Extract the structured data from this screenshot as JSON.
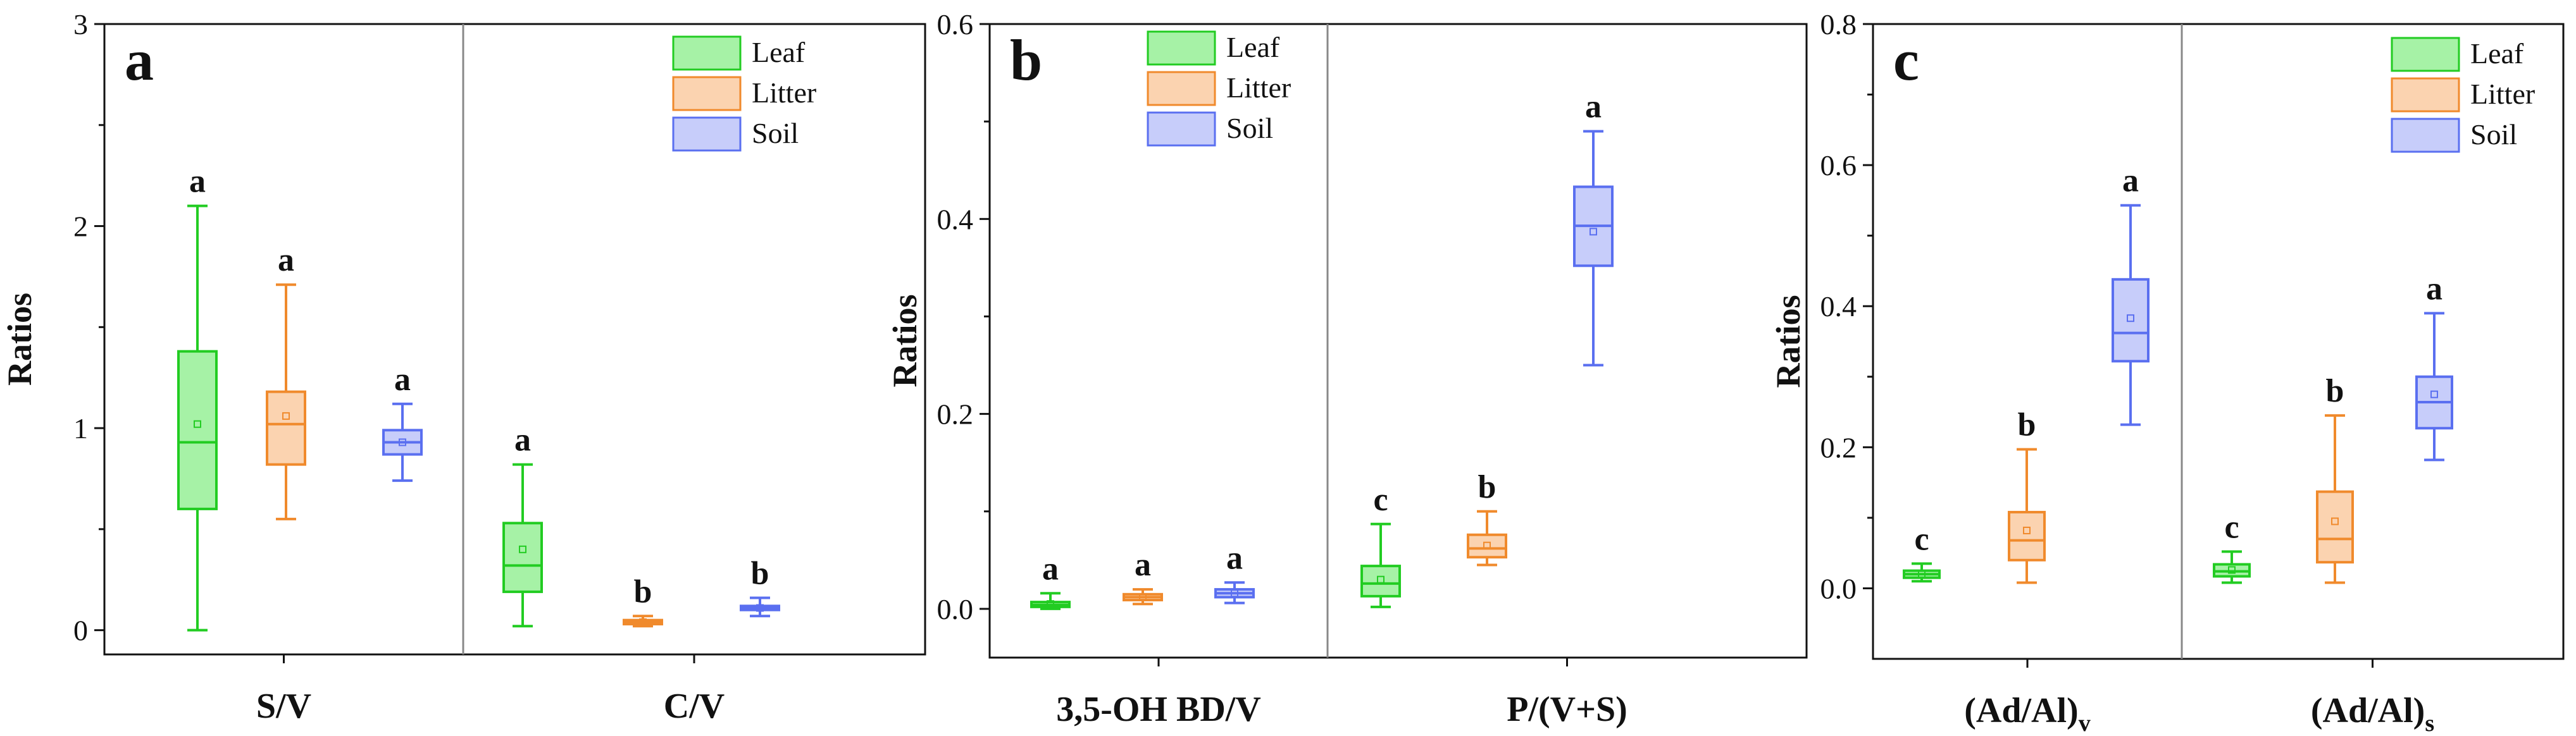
{
  "colors": {
    "Leaf": "#22cc22",
    "Litter": "#f08a2c",
    "Soil": "#5a6ff0"
  },
  "fills": {
    "Leaf": "#a6f2a6",
    "Litter": "#fbd3b0",
    "Soil": "#c7cdfa"
  },
  "chart_data": [
    {
      "type": "box",
      "panel_label": "a",
      "ylabel": "Ratios",
      "ylim": [
        -0.12,
        3
      ],
      "yticks": [
        0,
        1,
        2,
        3
      ],
      "ytick_labels": [
        "0",
        "1",
        "2",
        "3"
      ],
      "legend": {
        "placement": "top-right",
        "entries": [
          "Leaf",
          "Litter",
          "Soil"
        ]
      },
      "categories": [
        "S/V",
        "C/V"
      ],
      "series": [
        {
          "name": "Leaf",
          "boxes": [
            {
              "min": 0.0,
              "q1": 0.6,
              "median": 0.93,
              "q3": 1.38,
              "max": 2.1,
              "mean": 1.02,
              "sig": "a"
            },
            {
              "min": 0.02,
              "q1": 0.19,
              "median": 0.32,
              "q3": 0.53,
              "max": 0.82,
              "mean": 0.4,
              "sig": "a"
            }
          ]
        },
        {
          "name": "Litter",
          "boxes": [
            {
              "min": 0.55,
              "q1": 0.82,
              "median": 1.02,
              "q3": 1.18,
              "max": 1.71,
              "mean": 1.06,
              "sig": "a"
            },
            {
              "min": 0.02,
              "q1": 0.03,
              "median": 0.04,
              "q3": 0.05,
              "max": 0.07,
              "mean": 0.04,
              "sig": "b"
            }
          ]
        },
        {
          "name": "Soil",
          "boxes": [
            {
              "min": 0.74,
              "q1": 0.87,
              "median": 0.93,
              "q3": 0.99,
              "max": 1.12,
              "mean": 0.93,
              "sig": "a"
            },
            {
              "min": 0.07,
              "q1": 0.1,
              "median": 0.11,
              "q3": 0.12,
              "max": 0.16,
              "mean": 0.11,
              "sig": "b"
            }
          ]
        }
      ]
    },
    {
      "type": "box",
      "panel_label": "b",
      "ylabel": "Ratios",
      "ylim": [
        -0.05,
        0.6
      ],
      "yticks": [
        0,
        0.2,
        0.4,
        0.6
      ],
      "ytick_labels": [
        "0.0",
        "0.2",
        "0.4",
        "0.6"
      ],
      "legend": {
        "placement": "top-right",
        "entries": [
          "Leaf",
          "Litter",
          "Soil"
        ]
      },
      "categories": [
        "3,5-OH BD/V",
        "P/(V+S)"
      ],
      "series": [
        {
          "name": "Leaf",
          "boxes": [
            {
              "min": 0.0,
              "q1": 0.002,
              "median": 0.004,
              "q3": 0.007,
              "max": 0.016,
              "mean": 0.005,
              "sig": "a"
            },
            {
              "min": 0.002,
              "q1": 0.013,
              "median": 0.026,
              "q3": 0.044,
              "max": 0.087,
              "mean": 0.03,
              "sig": "c"
            }
          ]
        },
        {
          "name": "Litter",
          "boxes": [
            {
              "min": 0.005,
              "q1": 0.009,
              "median": 0.012,
              "q3": 0.015,
              "max": 0.02,
              "mean": 0.012,
              "sig": "a"
            },
            {
              "min": 0.045,
              "q1": 0.053,
              "median": 0.062,
              "q3": 0.076,
              "max": 0.1,
              "mean": 0.065,
              "sig": "b"
            }
          ]
        },
        {
          "name": "Soil",
          "boxes": [
            {
              "min": 0.006,
              "q1": 0.012,
              "median": 0.016,
              "q3": 0.02,
              "max": 0.027,
              "mean": 0.016,
              "sig": "a"
            },
            {
              "min": 0.25,
              "q1": 0.352,
              "median": 0.393,
              "q3": 0.433,
              "max": 0.49,
              "mean": 0.387,
              "sig": "a"
            }
          ]
        }
      ]
    },
    {
      "type": "box",
      "panel_label": "c",
      "ylabel": "Ratios",
      "ylim": [
        -0.1,
        0.8
      ],
      "yticks": [
        0,
        0.2,
        0.4,
        0.6,
        0.8
      ],
      "ytick_labels": [
        "0.0",
        "0.2",
        "0.4",
        "0.6",
        "0.8"
      ],
      "legend": {
        "placement": "top-right",
        "entries": [
          "Leaf",
          "Litter",
          "Soil"
        ]
      },
      "categories": [
        "(Ad/Al)v",
        "(Ad/Al)s"
      ],
      "category_parts": [
        {
          "main": "(Ad/Al)",
          "sub": "v"
        },
        {
          "main": "(Ad/Al)",
          "sub": "s"
        }
      ],
      "series": [
        {
          "name": "Leaf",
          "boxes": [
            {
              "min": 0.01,
              "q1": 0.015,
              "median": 0.02,
              "q3": 0.025,
              "max": 0.035,
              "mean": 0.02,
              "sig": "c"
            },
            {
              "min": 0.008,
              "q1": 0.017,
              "median": 0.024,
              "q3": 0.034,
              "max": 0.052,
              "mean": 0.026,
              "sig": "c"
            }
          ]
        },
        {
          "name": "Litter",
          "boxes": [
            {
              "min": 0.008,
              "q1": 0.04,
              "median": 0.068,
              "q3": 0.108,
              "max": 0.197,
              "mean": 0.082,
              "sig": "b"
            },
            {
              "min": 0.008,
              "q1": 0.037,
              "median": 0.07,
              "q3": 0.137,
              "max": 0.245,
              "mean": 0.095,
              "sig": "b"
            }
          ]
        },
        {
          "name": "Soil",
          "boxes": [
            {
              "min": 0.232,
              "q1": 0.322,
              "median": 0.362,
              "q3": 0.438,
              "max": 0.543,
              "mean": 0.383,
              "sig": "a"
            },
            {
              "min": 0.182,
              "q1": 0.227,
              "median": 0.264,
              "q3": 0.3,
              "max": 0.39,
              "mean": 0.275,
              "sig": "a"
            }
          ]
        }
      ]
    }
  ]
}
